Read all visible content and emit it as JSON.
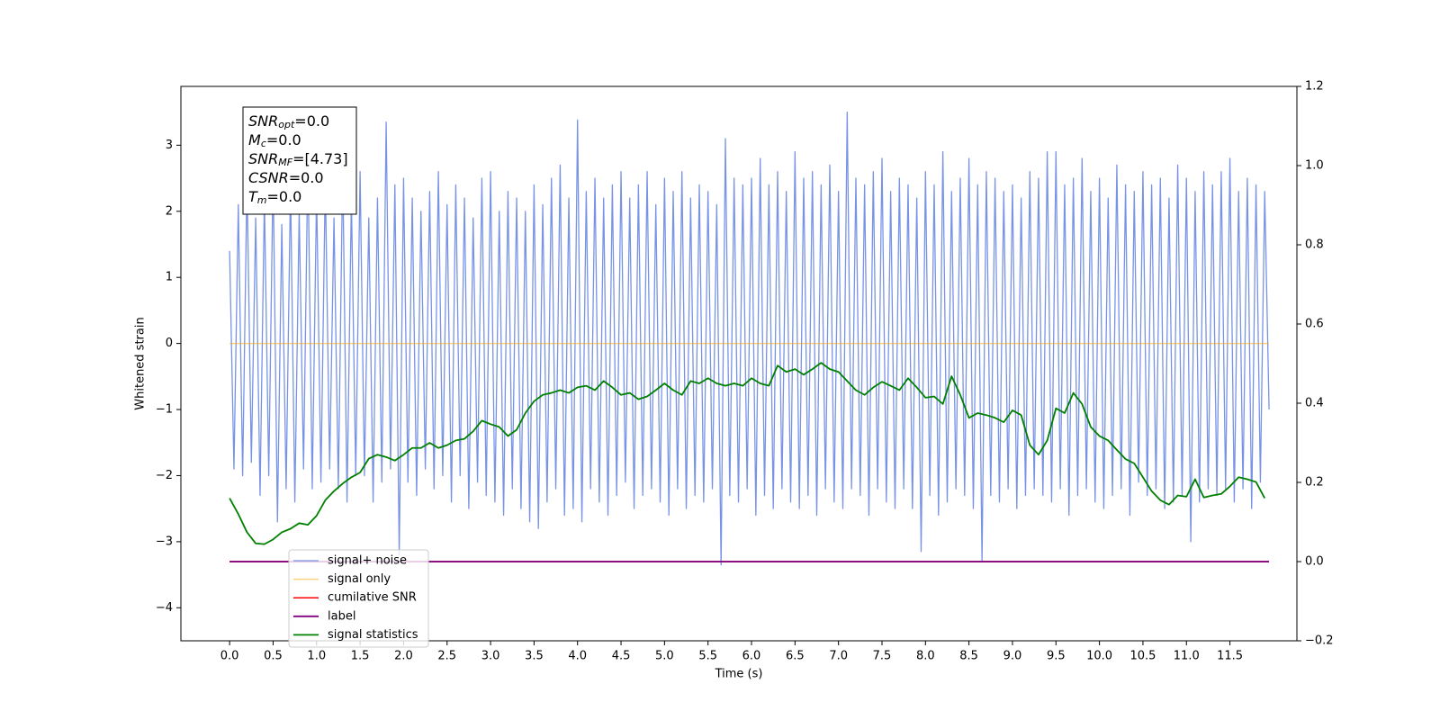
{
  "chart_data": {
    "type": "line",
    "xlabel": "Time (s)",
    "ylabel": "Whitened strain",
    "xlim": [
      -0.56,
      12.27
    ],
    "ylim": [
      -4.5,
      3.89
    ],
    "y2lim": [
      -0.2,
      1.2
    ],
    "xticks": [
      {
        "value": 0,
        "label": "0.0"
      },
      0.5,
      {
        "value": 1,
        "label": "1.0"
      },
      1.5,
      {
        "value": 2,
        "label": "2.0"
      },
      2.5,
      {
        "value": 3,
        "label": "3.0"
      },
      3.5,
      {
        "value": 4,
        "label": "4.0"
      },
      4.5,
      {
        "value": 5,
        "label": "5.0"
      },
      5.5,
      {
        "value": 6,
        "label": "6.0"
      },
      6.5,
      {
        "value": 7,
        "label": "7.0"
      },
      7.5,
      {
        "value": 8,
        "label": "8.0"
      },
      8.5,
      {
        "value": 9,
        "label": "9.0"
      },
      9.5,
      {
        "value": 10,
        "label": "10.0"
      },
      10.5,
      {
        "value": 11,
        "label": "11.0"
      },
      11.5
    ],
    "yticks": [
      {
        "value": -4,
        "label": "−4"
      },
      {
        "value": -3,
        "label": "−3"
      },
      {
        "value": -2,
        "label": "−2"
      },
      {
        "value": -1,
        "label": "−1"
      },
      0,
      1,
      2,
      3
    ],
    "y2ticks": [
      {
        "value": -0.2,
        "label": "−0.2"
      },
      {
        "value": 0,
        "label": "0.0"
      },
      0.2,
      0.4,
      0.6,
      0.8,
      {
        "value": 1,
        "label": "1.0"
      },
      1.2
    ],
    "legend": "lower left",
    "annotation": [
      {
        "main": "SNR",
        "sub": "opt",
        "rest": "=0.0"
      },
      {
        "main": "M",
        "sub": "c",
        "rest": "=0.0"
      },
      {
        "main": "SNR",
        "sub": "MF",
        "rest": "=[4.73]"
      },
      {
        "main": "CSNR",
        "rest": "=0.0"
      },
      {
        "main": "T",
        "sub": "m",
        "rest": "=0.0"
      }
    ],
    "series": [
      {
        "name": "signal+ noise",
        "color": "#7893e6",
        "x": [
          0,
          0.05,
          0.1,
          0.15,
          0.2,
          0.25,
          0.3,
          0.35,
          0.4,
          0.45,
          0.5,
          0.55,
          0.6,
          0.65,
          0.7,
          0.75,
          0.8,
          0.85,
          0.9,
          0.95,
          1,
          1.05,
          1.1,
          1.15,
          1.2,
          1.25,
          1.3,
          1.35,
          1.4,
          1.45,
          1.5,
          1.55,
          1.6,
          1.65,
          1.7,
          1.75,
          1.8,
          1.85,
          1.9,
          1.95,
          2,
          2.05,
          2.1,
          2.15,
          2.2,
          2.25,
          2.3,
          2.35,
          2.4,
          2.45,
          2.5,
          2.55,
          2.6,
          2.65,
          2.7,
          2.75,
          2.8,
          2.85,
          2.9,
          2.95,
          3,
          3.05,
          3.1,
          3.15,
          3.2,
          3.25,
          3.3,
          3.35,
          3.4,
          3.45,
          3.5,
          3.55,
          3.6,
          3.65,
          3.7,
          3.75,
          3.8,
          3.85,
          3.9,
          3.95,
          4,
          4.05,
          4.1,
          4.15,
          4.2,
          4.25,
          4.3,
          4.35,
          4.4,
          4.45,
          4.5,
          4.55,
          4.6,
          4.65,
          4.7,
          4.75,
          4.8,
          4.85,
          4.9,
          4.95,
          5,
          5.05,
          5.1,
          5.15,
          5.2,
          5.25,
          5.3,
          5.35,
          5.4,
          5.45,
          5.5,
          5.55,
          5.6,
          5.65,
          5.7,
          5.75,
          5.8,
          5.85,
          5.9,
          5.95,
          6,
          6.05,
          6.1,
          6.15,
          6.2,
          6.25,
          6.3,
          6.35,
          6.4,
          6.45,
          6.5,
          6.55,
          6.6,
          6.65,
          6.7,
          6.75,
          6.8,
          6.85,
          6.9,
          6.95,
          7,
          7.05,
          7.1,
          7.15,
          7.2,
          7.25,
          7.3,
          7.35,
          7.4,
          7.45,
          7.5,
          7.55,
          7.6,
          7.65,
          7.7,
          7.75,
          7.8,
          7.85,
          7.9,
          7.95,
          8,
          8.05,
          8.1,
          8.15,
          8.2,
          8.25,
          8.3,
          8.35,
          8.4,
          8.45,
          8.5,
          8.55,
          8.6,
          8.65,
          8.7,
          8.75,
          8.8,
          8.85,
          8.9,
          8.95,
          9,
          9.05,
          9.1,
          9.15,
          9.2,
          9.25,
          9.3,
          9.35,
          9.4,
          9.45,
          9.5,
          9.55,
          9.6,
          9.65,
          9.7,
          9.75,
          9.8,
          9.85,
          9.9,
          9.95,
          10,
          10.05,
          10.1,
          10.15,
          10.2,
          10.25,
          10.3,
          10.35,
          10.4,
          10.45,
          10.5,
          10.55,
          10.6,
          10.65,
          10.7,
          10.75,
          10.8,
          10.85,
          10.9,
          10.95,
          11,
          11.05,
          11.1,
          11.15,
          11.2,
          11.25,
          11.3,
          11.35,
          11.4,
          11.45,
          11.5,
          11.55,
          11.6,
          11.65,
          11.7,
          11.75,
          11.8,
          11.85,
          11.9,
          11.95
        ],
        "values": [
          1.4,
          -1.9,
          2.1,
          -2.0,
          2.5,
          -1.8,
          1.9,
          -2.3,
          2.2,
          -2.0,
          2.6,
          -2.7,
          1.8,
          -2.2,
          2.4,
          -2.4,
          2.0,
          -1.9,
          2.8,
          -2.2,
          2.3,
          -2.1,
          2.5,
          -1.9,
          1.9,
          -2.2,
          2.7,
          -2.4,
          2.2,
          -2.0,
          2.6,
          -2.0,
          1.9,
          -2.4,
          2.2,
          -2.1,
          3.35,
          -1.9,
          2.4,
          -3.2,
          2.5,
          -2.1,
          2.2,
          -2.3,
          2.0,
          -1.9,
          2.3,
          -2.2,
          2.6,
          -2.0,
          2.1,
          -2.4,
          2.4,
          -2.0,
          2.2,
          -2.5,
          1.9,
          -2.1,
          2.5,
          -2.3,
          2.6,
          -2.4,
          2.0,
          -2.6,
          2.3,
          -2.2,
          2.2,
          -2.5,
          2.0,
          -2.7,
          2.4,
          -2.8,
          2.1,
          -2.4,
          2.5,
          -2.2,
          2.7,
          -2.6,
          2.2,
          -2.5,
          3.38,
          -2.7,
          2.3,
          -2.2,
          2.5,
          -2.4,
          2.2,
          -2.6,
          2.4,
          -2.3,
          2.6,
          -2.1,
          2.2,
          -2.5,
          2.4,
          -2.3,
          2.6,
          -2.2,
          2.1,
          -2.4,
          2.5,
          -2.6,
          2.3,
          -2.2,
          2.6,
          -2.5,
          2.2,
          -2.3,
          2.4,
          -2.4,
          2.3,
          -2.2,
          2.1,
          -3.35,
          3.1,
          -2.3,
          2.5,
          -2.4,
          2.4,
          -2.2,
          2.5,
          -2.6,
          2.8,
          -2.3,
          2.4,
          -2.5,
          2.6,
          -2.2,
          2.3,
          -2.4,
          2.9,
          -2.5,
          2.5,
          -2.3,
          2.6,
          -2.6,
          2.4,
          -2.2,
          2.7,
          -2.4,
          2.3,
          -2.5,
          3.5,
          -2.2,
          2.5,
          -2.3,
          2.4,
          -2.6,
          2.6,
          -2.2,
          2.8,
          -2.4,
          2.3,
          -2.5,
          2.5,
          -2.2,
          2.4,
          -2.5,
          2.2,
          -3.15,
          2.6,
          -2.3,
          2.4,
          -2.6,
          2.9,
          -2.4,
          2.3,
          -2.2,
          2.5,
          -2.3,
          2.8,
          -2.5,
          2.4,
          -3.3,
          2.6,
          -2.3,
          2.5,
          -2.4,
          2.3,
          -2.2,
          2.4,
          -2.5,
          2.2,
          -2.3,
          2.6,
          -2.2,
          2.5,
          -2.3,
          2.9,
          -2.4,
          2.9,
          -2.2,
          2.4,
          -2.6,
          2.5,
          -2.3,
          2.8,
          -2.2,
          2.3,
          -2.4,
          2.5,
          -2.5,
          2.2,
          -2.3,
          2.7,
          -2.2,
          2.4,
          -2.6,
          2.3,
          -2.1,
          2.6,
          -2.3,
          2.4,
          -2.2,
          2.5,
          -2.5,
          2.2,
          -2.4,
          2.7,
          -2.3,
          2.5,
          -3.0,
          2.3,
          -2.4,
          2.6,
          -2.2,
          2.4,
          -2.3,
          2.6,
          -2.2,
          2.8,
          -2.4,
          2.3,
          -2.2,
          2.5,
          -2.5,
          2.4,
          -2.1,
          2.3,
          -1.0
        ]
      },
      {
        "name": "signal only",
        "color": "#ffa500",
        "x": [
          0,
          11.95
        ],
        "values": [
          0,
          0
        ]
      },
      {
        "name": "cumilative SNR",
        "color": "#ff0000",
        "axis": "y2",
        "x": [
          0,
          11.95
        ],
        "values": [
          0,
          0
        ]
      },
      {
        "name": "label",
        "color": "#800080",
        "axis": "y2",
        "x": [
          0,
          11.95
        ],
        "values": [
          0,
          0
        ]
      },
      {
        "name": "signal statistics",
        "color": "#008000",
        "axis": "y2",
        "x": [
          0,
          0.1,
          0.2,
          0.3,
          0.4,
          0.5,
          0.6,
          0.7,
          0.8,
          0.9,
          1,
          1.1,
          1.2,
          1.3,
          1.4,
          1.5,
          1.6,
          1.7,
          1.8,
          1.9,
          2,
          2.1,
          2.2,
          2.3,
          2.4,
          2.5,
          2.6,
          2.7,
          2.8,
          2.9,
          3,
          3.1,
          3.2,
          3.3,
          3.4,
          3.5,
          3.6,
          3.7,
          3.8,
          3.9,
          4,
          4.1,
          4.2,
          4.3,
          4.4,
          4.5,
          4.6,
          4.7,
          4.8,
          4.9,
          5,
          5.1,
          5.2,
          5.3,
          5.4,
          5.5,
          5.6,
          5.7,
          5.8,
          5.9,
          6,
          6.1,
          6.2,
          6.3,
          6.4,
          6.5,
          6.6,
          6.7,
          6.8,
          6.9,
          7,
          7.1,
          7.2,
          7.3,
          7.4,
          7.5,
          7.6,
          7.7,
          7.8,
          7.9,
          8,
          8.1,
          8.2,
          8.3,
          8.4,
          8.5,
          8.6,
          8.7,
          8.8,
          8.9,
          9,
          9.1,
          9.2,
          9.3,
          9.4,
          9.5,
          9.6,
          9.7,
          9.8,
          9.9,
          10,
          10.1,
          10.2,
          10.3,
          10.4,
          10.5,
          10.6,
          10.7,
          10.8,
          10.9,
          11,
          11.1,
          11.2,
          11.3,
          11.4,
          11.5,
          11.6,
          11.7,
          11.8,
          11.9
        ],
        "values": [
          0.16,
          0.12,
          0.074,
          0.046,
          0.044,
          0.056,
          0.074,
          0.083,
          0.097,
          0.093,
          0.116,
          0.155,
          0.178,
          0.197,
          0.213,
          0.225,
          0.26,
          0.27,
          0.264,
          0.255,
          0.27,
          0.287,
          0.287,
          0.3,
          0.287,
          0.294,
          0.306,
          0.31,
          0.329,
          0.356,
          0.347,
          0.34,
          0.317,
          0.333,
          0.375,
          0.405,
          0.421,
          0.426,
          0.433,
          0.426,
          0.44,
          0.444,
          0.433,
          0.456,
          0.44,
          0.421,
          0.426,
          0.41,
          0.417,
          0.433,
          0.45,
          0.433,
          0.421,
          0.456,
          0.45,
          0.463,
          0.45,
          0.444,
          0.45,
          0.444,
          0.463,
          0.45,
          0.444,
          0.495,
          0.479,
          0.486,
          0.472,
          0.486,
          0.502,
          0.486,
          0.479,
          0.456,
          0.433,
          0.421,
          0.44,
          0.454,
          0.444,
          0.433,
          0.463,
          0.44,
          0.414,
          0.417,
          0.398,
          0.468,
          0.421,
          0.363,
          0.375,
          0.37,
          0.363,
          0.352,
          0.382,
          0.37,
          0.294,
          0.27,
          0.306,
          0.387,
          0.375,
          0.426,
          0.398,
          0.34,
          0.317,
          0.306,
          0.282,
          0.259,
          0.248,
          0.213,
          0.178,
          0.155,
          0.144,
          0.167,
          0.164,
          0.208,
          0.162,
          0.167,
          0.171,
          0.19,
          0.213,
          0.208,
          0.201,
          0.16
        ]
      }
    ]
  }
}
